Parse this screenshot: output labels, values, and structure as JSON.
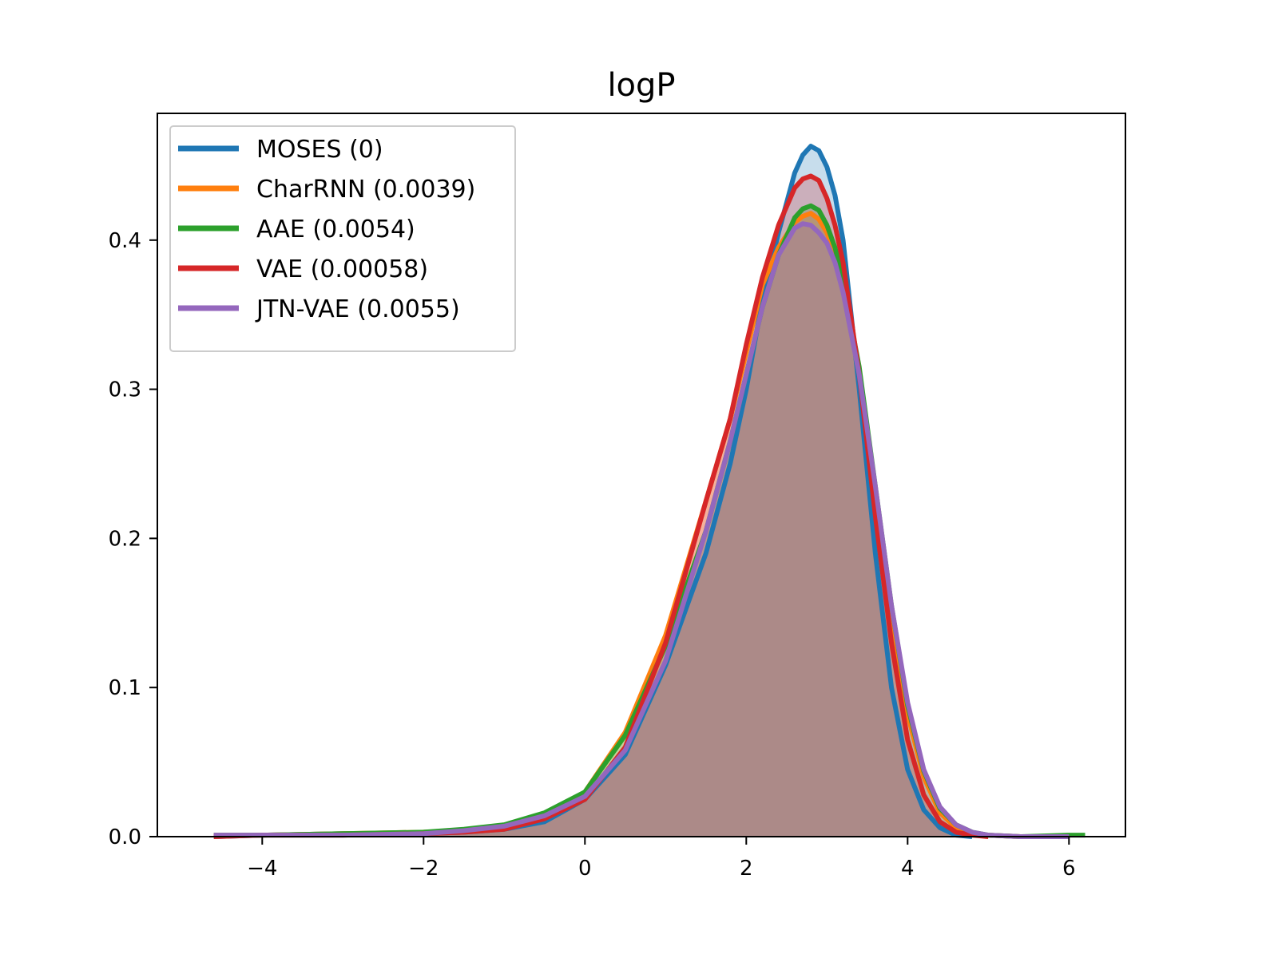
{
  "chart_data": {
    "type": "area",
    "title": "logP",
    "xlabel": "",
    "ylabel": "",
    "xlim": [
      -5.3,
      6.7
    ],
    "ylim": [
      0,
      0.485
    ],
    "x_ticks": [
      -4,
      -2,
      0,
      2,
      4,
      6
    ],
    "x_tick_labels": [
      "−4",
      "−2",
      "0",
      "2",
      "4",
      "6"
    ],
    "y_ticks": [
      0.0,
      0.1,
      0.2,
      0.3,
      0.4
    ],
    "y_tick_labels": [
      "0.0",
      "0.1",
      "0.2",
      "0.3",
      "0.4"
    ],
    "grid": false,
    "legend_position": "top-left",
    "series": [
      {
        "name": "MOSES (0)",
        "color": "#1f77b4",
        "x": [
          -4.6,
          -4.0,
          -3.0,
          -2.0,
          -1.5,
          -1.0,
          -0.5,
          0.0,
          0.5,
          1.0,
          1.5,
          1.8,
          2.0,
          2.2,
          2.4,
          2.6,
          2.7,
          2.8,
          2.9,
          3.0,
          3.1,
          3.2,
          3.4,
          3.6,
          3.8,
          4.0,
          4.2,
          4.4,
          4.6,
          4.8
        ],
        "y": [
          0.0,
          0.001,
          0.002,
          0.002,
          0.003,
          0.005,
          0.01,
          0.025,
          0.055,
          0.115,
          0.19,
          0.25,
          0.3,
          0.36,
          0.405,
          0.445,
          0.457,
          0.463,
          0.46,
          0.449,
          0.43,
          0.4,
          0.3,
          0.19,
          0.1,
          0.045,
          0.018,
          0.006,
          0.001,
          0.0
        ]
      },
      {
        "name": "CharRNN (0.0039)",
        "color": "#ff7f0e",
        "x": [
          -4.6,
          -4.0,
          -3.0,
          -2.0,
          -1.5,
          -1.0,
          -0.5,
          0.0,
          0.5,
          1.0,
          1.5,
          1.8,
          2.0,
          2.2,
          2.4,
          2.6,
          2.7,
          2.8,
          2.9,
          3.0,
          3.1,
          3.2,
          3.4,
          3.6,
          3.8,
          4.0,
          4.2,
          4.4,
          4.6,
          4.8,
          5.0,
          5.4,
          6.0
        ],
        "y": [
          0.001,
          0.001,
          0.002,
          0.003,
          0.004,
          0.007,
          0.013,
          0.03,
          0.07,
          0.135,
          0.225,
          0.28,
          0.325,
          0.37,
          0.395,
          0.412,
          0.416,
          0.418,
          0.414,
          0.405,
          0.39,
          0.368,
          0.31,
          0.23,
          0.15,
          0.082,
          0.04,
          0.016,
          0.006,
          0.002,
          0.001,
          0.0,
          0.0
        ]
      },
      {
        "name": "AAE (0.0054)",
        "color": "#2ca02c",
        "x": [
          -4.6,
          -4.0,
          -3.0,
          -2.0,
          -1.5,
          -1.0,
          -0.5,
          0.0,
          0.5,
          1.0,
          1.5,
          1.8,
          2.0,
          2.2,
          2.4,
          2.6,
          2.7,
          2.8,
          2.9,
          3.0,
          3.1,
          3.2,
          3.4,
          3.6,
          3.8,
          4.0,
          4.2,
          4.4,
          4.6,
          4.8,
          5.0,
          5.4,
          6.0,
          6.2
        ],
        "y": [
          0.001,
          0.001,
          0.002,
          0.003,
          0.005,
          0.008,
          0.016,
          0.03,
          0.068,
          0.128,
          0.205,
          0.265,
          0.31,
          0.355,
          0.39,
          0.415,
          0.421,
          0.423,
          0.42,
          0.41,
          0.395,
          0.372,
          0.315,
          0.235,
          0.155,
          0.088,
          0.044,
          0.019,
          0.008,
          0.003,
          0.001,
          0.0,
          0.001,
          0.001
        ]
      },
      {
        "name": "VAE (0.00058)",
        "color": "#d62728",
        "x": [
          -4.6,
          -4.0,
          -3.0,
          -2.0,
          -1.5,
          -1.0,
          -0.5,
          0.0,
          0.5,
          1.0,
          1.5,
          1.8,
          2.0,
          2.2,
          2.4,
          2.6,
          2.7,
          2.8,
          2.9,
          3.0,
          3.1,
          3.2,
          3.4,
          3.6,
          3.8,
          4.0,
          4.2,
          4.4,
          4.6,
          4.8,
          5.0
        ],
        "y": [
          0.0,
          0.001,
          0.001,
          0.002,
          0.003,
          0.005,
          0.012,
          0.025,
          0.06,
          0.13,
          0.225,
          0.28,
          0.33,
          0.375,
          0.41,
          0.435,
          0.441,
          0.443,
          0.44,
          0.428,
          0.41,
          0.385,
          0.31,
          0.215,
          0.13,
          0.065,
          0.028,
          0.01,
          0.003,
          0.001,
          0.0
        ]
      },
      {
        "name": "JTN-VAE (0.0055)",
        "color": "#9467bd",
        "x": [
          -4.6,
          -4.0,
          -3.0,
          -2.0,
          -1.5,
          -1.0,
          -0.5,
          0.0,
          0.5,
          1.0,
          1.5,
          1.8,
          2.0,
          2.2,
          2.4,
          2.6,
          2.7,
          2.8,
          2.9,
          3.0,
          3.1,
          3.2,
          3.4,
          3.6,
          3.8,
          4.0,
          4.2,
          4.4,
          4.6,
          4.8,
          5.0,
          5.4,
          6.0
        ],
        "y": [
          0.001,
          0.001,
          0.001,
          0.002,
          0.004,
          0.007,
          0.014,
          0.027,
          0.058,
          0.118,
          0.205,
          0.265,
          0.31,
          0.355,
          0.39,
          0.408,
          0.411,
          0.41,
          0.405,
          0.398,
          0.385,
          0.365,
          0.31,
          0.235,
          0.155,
          0.09,
          0.045,
          0.02,
          0.008,
          0.003,
          0.001,
          0.0,
          0.0
        ]
      }
    ]
  }
}
